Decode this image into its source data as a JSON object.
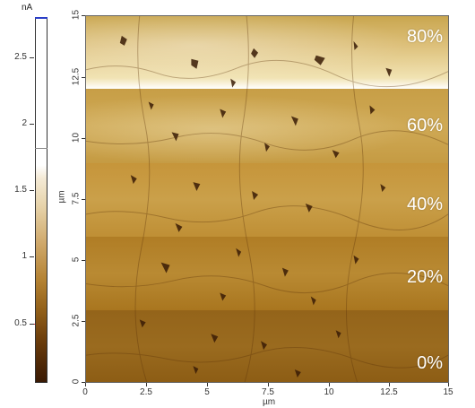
{
  "colorbar": {
    "unit": "nA",
    "ticks": [
      {
        "label": "2.5",
        "value": 2.5
      },
      {
        "label": "2",
        "value": 2
      },
      {
        "label": "1.5",
        "value": 1.5
      },
      {
        "label": "1",
        "value": 1
      },
      {
        "label": "0.5",
        "value": 0.5
      }
    ],
    "range": [
      0,
      2.75
    ],
    "gradient_colors": [
      "#3a1a04",
      "#93611a",
      "#cfa86a",
      "#f4ead6",
      "#ffffff"
    ],
    "top_marker_color": "#2a3ec8",
    "red_marker_color": "#e0202a"
  },
  "image": {
    "bands": [
      {
        "label": "80%"
      },
      {
        "label": "60%"
      },
      {
        "label": "40%"
      },
      {
        "label": "20%"
      },
      {
        "label": "0%"
      }
    ]
  },
  "x_axis": {
    "label": "µm",
    "ticks": [
      "0",
      "2.5",
      "5",
      "7.5",
      "10",
      "12.5",
      "15"
    ],
    "range": [
      0,
      15
    ]
  },
  "y_axis": {
    "label": "µm",
    "ticks": [
      "0",
      "2.5",
      "5",
      "7.5",
      "10",
      "12.5",
      "15"
    ],
    "range": [
      0,
      15
    ]
  }
}
